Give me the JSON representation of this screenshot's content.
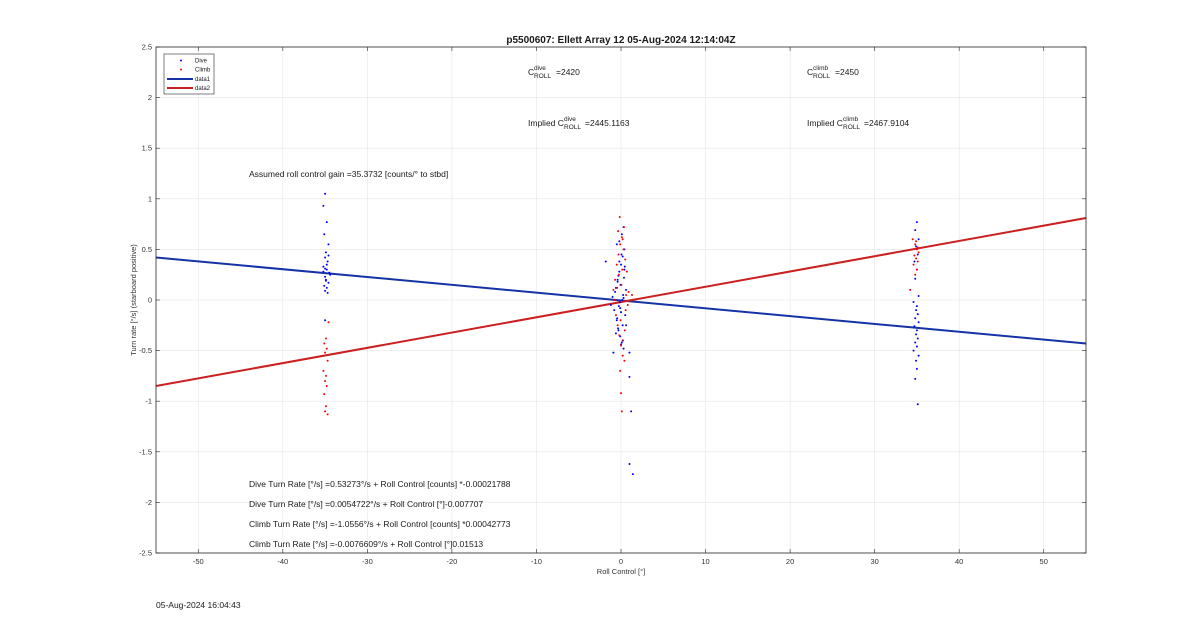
{
  "chart_data": {
    "type": "scatter",
    "title": "p5500607: Ellett Array 12 05-Aug-2024 12:14:04Z",
    "xlabel": "Roll Control [°]",
    "ylabel": "Turn rate [°/s] (starboard positive)",
    "xlim": [
      -55,
      55
    ],
    "ylim": [
      -2.5,
      2.5
    ],
    "xticks": [
      -50,
      -40,
      -30,
      -20,
      -10,
      0,
      10,
      20,
      30,
      40,
      50
    ],
    "yticks": [
      -2.5,
      -2,
      -1.5,
      -1,
      -0.5,
      0,
      0.5,
      1,
      1.5,
      2,
      2.5
    ],
    "xtick_labels": [
      "-50",
      "-40",
      "-30",
      "-20",
      "-10",
      "0",
      "10",
      "20",
      "30",
      "40",
      "50"
    ],
    "ytick_labels": [
      "-2.5",
      "-2",
      "-1.5",
      "-1",
      "-0.5",
      "0",
      "0.5",
      "1",
      "1.5",
      "2",
      "2.5"
    ],
    "grid": true,
    "legend": {
      "placement": "top-left",
      "entries": [
        {
          "label": "Dive",
          "kind": "marker",
          "color": "#0000ff"
        },
        {
          "label": "Climb",
          "kind": "marker",
          "color": "#ff0000"
        },
        {
          "label": "data1",
          "kind": "line",
          "color": "#1533a6"
        },
        {
          "label": "data2",
          "kind": "line",
          "color": "#cc1f1f"
        }
      ]
    },
    "lines": [
      {
        "name": "data1",
        "color": "#1533a6",
        "x": [
          -55,
          55
        ],
        "y": [
          0.42,
          -0.43
        ]
      },
      {
        "name": "data2",
        "color": "#cc1f1f",
        "x": [
          -55,
          55
        ],
        "y": [
          -0.85,
          0.81
        ]
      }
    ],
    "series": [
      {
        "name": "Dive",
        "color": "#0000ff",
        "x": [
          -35,
          -35.2,
          -34.8,
          -35.1,
          -34.6,
          -34.9,
          -35,
          -34.7,
          -35.2,
          -34.8,
          -34.5,
          -35,
          -34.9,
          -34.6,
          -35.1,
          -34.8,
          -35,
          -34.7,
          -34.4,
          -35,
          -34.9,
          -35.2,
          -34.6,
          -34.8,
          -35,
          -1.2,
          -1,
          -0.8,
          -0.6,
          -0.5,
          -0.4,
          -0.3,
          -0.2,
          -0.1,
          0,
          0.1,
          0.2,
          0.3,
          0.4,
          0.5,
          -0.7,
          -0.2,
          0.2,
          -0.4,
          0.6,
          -0.9,
          0.1,
          0.3,
          -0.1,
          0,
          -0.3,
          0.4,
          -0.6,
          0.2,
          -0.2,
          0.05,
          -0.05,
          0.15,
          -0.15,
          0.25,
          -0.25,
          0.35,
          -0.35,
          0.45,
          -0.45,
          1.0,
          1.0,
          1.2,
          1.4,
          1.0,
          -1.8,
          0.6,
          -0.5,
          0.0,
          0.3,
          35,
          34.8,
          35.2,
          34.9,
          35.1,
          34.7,
          35,
          34.8,
          35.2,
          34.6,
          35,
          34.9,
          35.1,
          34.8,
          35.2,
          34.7,
          35,
          34.9,
          35.1,
          34.8,
          35,
          34.6,
          35.2,
          34.9,
          35,
          34.8,
          35.1
        ],
        "y": [
          1.05,
          0.93,
          0.77,
          0.65,
          0.55,
          0.47,
          0.42,
          0.38,
          0.33,
          0.3,
          0.27,
          0.23,
          0.2,
          0.17,
          0.14,
          0.12,
          0.09,
          0.07,
          0.25,
          0.31,
          0.19,
          0.28,
          0.44,
          0.35,
          -0.2,
          -0.05,
          0.03,
          -0.1,
          0.12,
          -0.2,
          0.2,
          -0.3,
          0.28,
          -0.36,
          0.35,
          -0.42,
          0.43,
          -0.48,
          0.5,
          -0.15,
          0.08,
          0.58,
          -0.25,
          0.18,
          0.1,
          -0.52,
          0.65,
          0.02,
          -0.08,
          -0.12,
          0.24,
          0.3,
          -0.33,
          -0.4,
          0.38,
          0.45,
          0.15,
          0.0,
          -0.02,
          0.05,
          -0.06,
          0.22,
          -0.28,
          0.33,
          -0.18,
          -0.52,
          -0.76,
          -1.1,
          -1.72,
          -1.62,
          0.38,
          -0.25,
          0.55,
          -0.44,
          0.72,
          0.77,
          0.69,
          0.6,
          0.53,
          0.45,
          0.38,
          0.3,
          0.21,
          0.04,
          -0.02,
          -0.06,
          -0.1,
          -0.14,
          -0.18,
          -0.22,
          -0.26,
          -0.3,
          -0.34,
          -0.38,
          -0.42,
          -0.46,
          -0.5,
          -0.55,
          -0.6,
          -0.68,
          -0.78,
          -1.03
        ]
      },
      {
        "name": "Climb",
        "color": "#ff0000",
        "x": [
          -34.6,
          -34.9,
          -35.1,
          -34.8,
          -35,
          -34.7,
          -35.2,
          -34.9,
          -35,
          -34.8,
          -35.1,
          -34.9,
          -35,
          -34.7,
          -0.9,
          -0.7,
          -0.5,
          -0.3,
          -0.1,
          0.1,
          0.3,
          0.5,
          0.7,
          -0.6,
          -0.4,
          -0.2,
          0,
          0.2,
          0.4,
          0.6,
          -0.8,
          0.8,
          -0.35,
          0.35,
          -0.15,
          0.15,
          0.05,
          -0.05,
          0.25,
          -0.25,
          0.45,
          -0.45,
          0.55,
          0.0,
          0.1,
          -0.1,
          0.2,
          0.9,
          1.3,
          34.5,
          34.8,
          35,
          35.2,
          34.7,
          34.9,
          35.1,
          34.6,
          35,
          34.8,
          34.2,
          34.9,
          35.1
        ],
        "y": [
          -0.22,
          -0.38,
          -0.43,
          -0.48,
          -0.52,
          -0.6,
          -0.7,
          -0.75,
          -0.8,
          -0.85,
          -0.93,
          -1.05,
          -1.1,
          -1.13,
          0.1,
          0.2,
          0.35,
          0.45,
          0.55,
          0.62,
          0.5,
          0.4,
          0.28,
          -0.15,
          -0.25,
          -0.35,
          -0.45,
          -0.55,
          -0.6,
          0.05,
          0.0,
          -0.05,
          0.68,
          0.72,
          0.82,
          0.3,
          0.15,
          -0.2,
          -0.4,
          0.25,
          -0.3,
          0.12,
          -0.1,
          -0.92,
          -1.1,
          -0.7,
          0.6,
          0.08,
          0.05,
          0.6,
          0.55,
          0.5,
          0.47,
          0.44,
          0.41,
          0.38,
          0.35,
          0.3,
          0.25,
          0.1,
          0.58,
          0.52
        ]
      }
    ],
    "annotations": {
      "cdive_main": "C",
      "cdive_sup": "dive",
      "cdive_sub": "ROLL",
      "cdive_val": "=2420",
      "cclimb_main": "C",
      "cclimb_sup": "climb",
      "cclimb_sub": "ROLL",
      "cclimb_val": "=2450",
      "implied_prefix": "Implied C",
      "idive_sup": "dive",
      "idive_sub": "ROLL",
      "idive_val": "=2445.1163",
      "iclimb_sup": "climb",
      "iclimb_sub": "ROLL",
      "iclimb_val": "=2467.9104",
      "gain": "Assumed roll control gain =35.3732 [counts/° to stbd]",
      "eq1": "Dive Turn Rate [°/s] =0.53273°/s + Roll Control [counts] *-0.00021788",
      "eq2": "Dive Turn Rate [°/s] =0.0054722°/s + Roll Control [°]-0.007707",
      "eq3": "Climb Turn Rate [°/s] =-1.0556°/s + Roll Control [counts] *0.00042773",
      "eq4": "Climb Turn Rate [°/s] =-0.0076609°/s + Roll Control [°]0.01513"
    }
  },
  "footer": {
    "timestamp": "05-Aug-2024 16:04:43"
  }
}
